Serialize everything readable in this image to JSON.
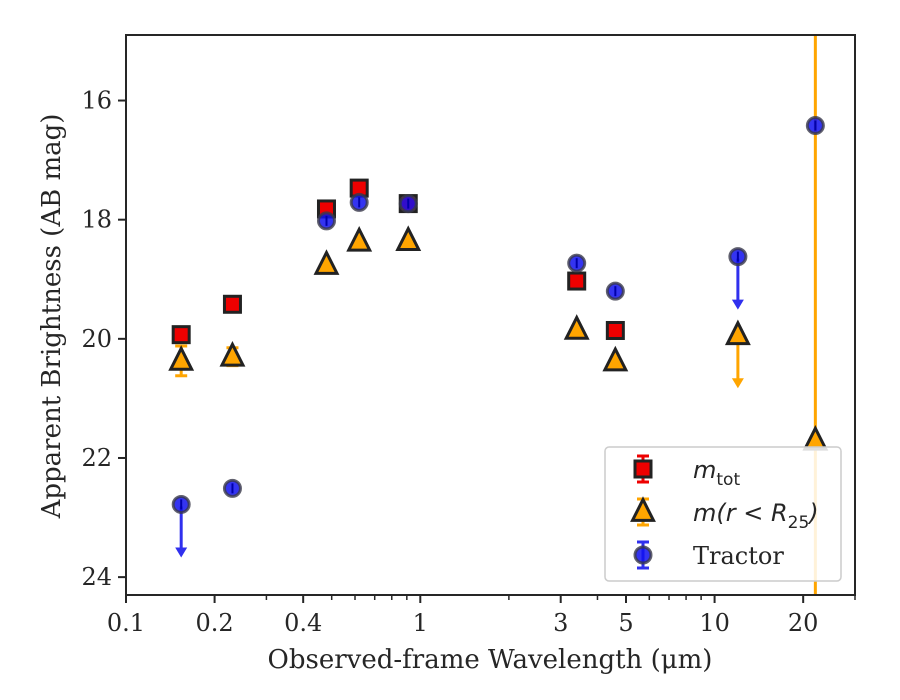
{
  "chart_data": {
    "type": "scatter",
    "title": "",
    "xlabel": "Observed-frame Wavelength (μm)",
    "ylabel": "Apparent Brightness (AB mag)",
    "xscale": "log",
    "xlim": [
      0.1,
      30
    ],
    "ylim": [
      24.3,
      14.9
    ],
    "y_inverted": true,
    "x_tick_labels": [
      "0.1",
      "0.2",
      "0.4",
      "1",
      "3",
      "5",
      "10",
      "20"
    ],
    "y_tick_labels": [
      "16",
      "18",
      "20",
      "22",
      "24"
    ],
    "grid": false,
    "legend_position": "lower-right",
    "vertical_line": {
      "x": 22.0,
      "color": "#FFA500"
    },
    "series": [
      {
        "name": "m_tot",
        "legend": {
          "base": "m",
          "sub": "tot"
        },
        "marker": "square",
        "color": "#EE0000",
        "edge": "#222222",
        "points": [
          {
            "x": 0.154,
            "y": 19.93
          },
          {
            "x": 0.23,
            "y": 19.42
          },
          {
            "x": 0.48,
            "y": 17.82
          },
          {
            "x": 0.62,
            "y": 17.47
          },
          {
            "x": 0.91,
            "y": 17.73
          },
          {
            "x": 3.4,
            "y": 19.03
          },
          {
            "x": 4.6,
            "y": 19.86
          }
        ]
      },
      {
        "name": "m(r < R25)",
        "legend": {
          "base": "m(r < R",
          "sub": "25",
          "tail": ")"
        },
        "marker": "triangle",
        "color": "#FFA500",
        "edge": "#222222",
        "points": [
          {
            "x": 0.154,
            "y": 20.37,
            "err": 0.25
          },
          {
            "x": 0.23,
            "y": 20.3,
            "err": 0.15
          },
          {
            "x": 0.48,
            "y": 18.76
          },
          {
            "x": 0.62,
            "y": 18.37
          },
          {
            "x": 0.91,
            "y": 18.36
          },
          {
            "x": 3.4,
            "y": 19.85
          },
          {
            "x": 4.6,
            "y": 20.38
          },
          {
            "x": 12.0,
            "y": 19.94,
            "upper_limit": true
          },
          {
            "x": 22.0,
            "y": 21.71
          }
        ]
      },
      {
        "name": "Tractor",
        "legend": {
          "base": "Tractor"
        },
        "marker": "circle",
        "color": "#1010EE",
        "edge": "#3A3A4A",
        "points": [
          {
            "x": 0.154,
            "y": 22.78,
            "upper_limit": true
          },
          {
            "x": 0.23,
            "y": 22.51
          },
          {
            "x": 0.48,
            "y": 18.02
          },
          {
            "x": 0.62,
            "y": 17.71
          },
          {
            "x": 0.91,
            "y": 17.73
          },
          {
            "x": 3.4,
            "y": 18.73
          },
          {
            "x": 4.6,
            "y": 19.2
          },
          {
            "x": 12.0,
            "y": 18.62,
            "upper_limit": true
          },
          {
            "x": 22.0,
            "y": 16.42
          }
        ]
      }
    ]
  }
}
